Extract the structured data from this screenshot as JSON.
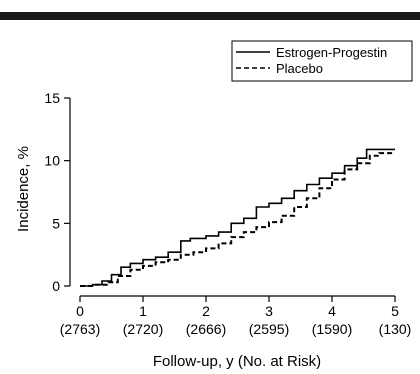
{
  "chart_data": {
    "type": "line",
    "title": "",
    "xlabel": "Follow-up, y (No. at Risk)",
    "ylabel": "Incidence, %",
    "xlim": [
      0,
      5
    ],
    "ylim": [
      0,
      15
    ],
    "grid": false,
    "legend_position": "top-right",
    "x_ticks": [
      0,
      1,
      2,
      3,
      4,
      5
    ],
    "y_ticks": [
      0,
      5,
      10,
      15
    ],
    "at_risk_labels": [
      "(2763)",
      "(2720)",
      "(2666)",
      "(2595)",
      "(1590)",
      "(130)"
    ],
    "series": [
      {
        "name": "Estrogen-Progestin",
        "style": "solid",
        "color": "#000000",
        "points": [
          [
            0.0,
            0.0
          ],
          [
            0.2,
            0.1
          ],
          [
            0.35,
            0.4
          ],
          [
            0.5,
            0.9
          ],
          [
            0.65,
            1.5
          ],
          [
            0.8,
            1.8
          ],
          [
            1.0,
            2.1
          ],
          [
            1.2,
            2.3
          ],
          [
            1.4,
            2.7
          ],
          [
            1.6,
            3.6
          ],
          [
            1.75,
            3.8
          ],
          [
            2.0,
            4.0
          ],
          [
            2.2,
            4.3
          ],
          [
            2.4,
            5.0
          ],
          [
            2.6,
            5.4
          ],
          [
            2.8,
            6.3
          ],
          [
            3.0,
            6.6
          ],
          [
            3.2,
            7.0
          ],
          [
            3.4,
            7.6
          ],
          [
            3.6,
            8.1
          ],
          [
            3.8,
            8.6
          ],
          [
            4.0,
            9.0
          ],
          [
            4.2,
            9.6
          ],
          [
            4.4,
            10.2
          ],
          [
            4.55,
            10.9
          ],
          [
            5.0,
            10.9
          ]
        ]
      },
      {
        "name": "Placebo",
        "style": "dashed",
        "color": "#000000",
        "points": [
          [
            0.0,
            0.0
          ],
          [
            0.25,
            0.1
          ],
          [
            0.45,
            0.3
          ],
          [
            0.6,
            0.8
          ],
          [
            0.8,
            1.3
          ],
          [
            1.0,
            1.6
          ],
          [
            1.2,
            1.9
          ],
          [
            1.4,
            2.1
          ],
          [
            1.6,
            2.5
          ],
          [
            1.8,
            2.7
          ],
          [
            2.0,
            3.0
          ],
          [
            2.2,
            3.4
          ],
          [
            2.4,
            3.9
          ],
          [
            2.6,
            4.3
          ],
          [
            2.8,
            4.7
          ],
          [
            3.0,
            5.1
          ],
          [
            3.2,
            5.6
          ],
          [
            3.4,
            6.3
          ],
          [
            3.6,
            7.0
          ],
          [
            3.8,
            7.8
          ],
          [
            4.0,
            8.5
          ],
          [
            4.2,
            9.3
          ],
          [
            4.4,
            9.8
          ],
          [
            4.6,
            10.4
          ],
          [
            4.75,
            10.6
          ],
          [
            5.0,
            10.6
          ]
        ]
      }
    ]
  }
}
